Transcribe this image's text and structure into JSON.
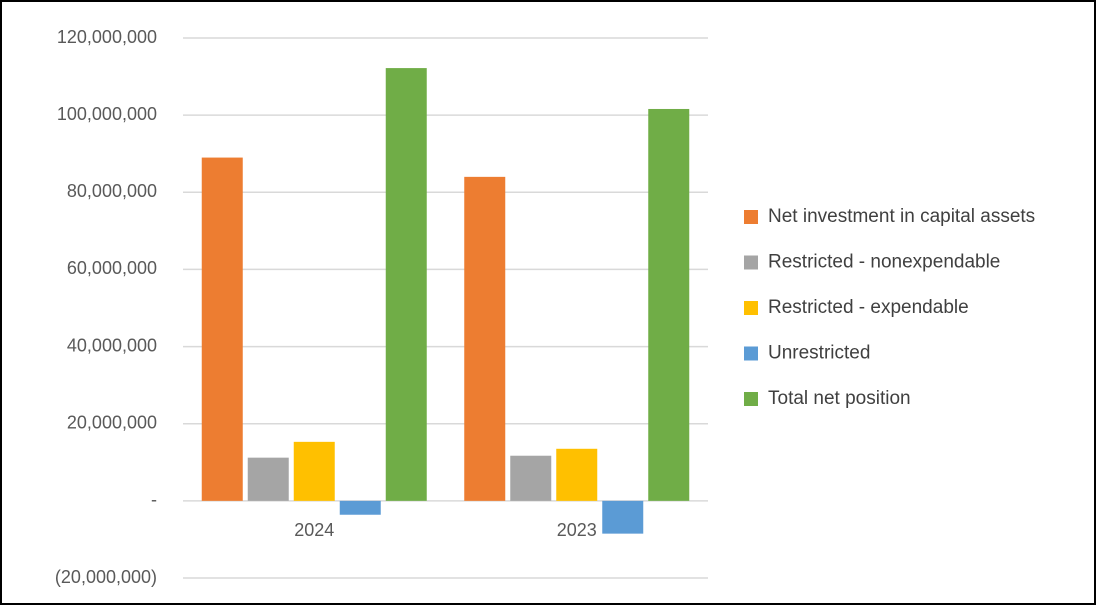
{
  "chart_data": {
    "type": "bar",
    "categories": [
      "2024",
      "2023"
    ],
    "series": [
      {
        "name": "Net investment in capital assets",
        "color": "#ed7d31",
        "values": [
          89000000,
          84000000
        ]
      },
      {
        "name": "Restricted - nonexpendable",
        "color": "#a5a5a5",
        "values": [
          11200000,
          11700000
        ]
      },
      {
        "name": "Restricted - expendable",
        "color": "#ffc000",
        "values": [
          15300000,
          13500000
        ]
      },
      {
        "name": "Unrestricted",
        "color": "#5b9bd5",
        "values": [
          -3600000,
          -8500000
        ]
      },
      {
        "name": "Total net position",
        "color": "#70ad47",
        "values": [
          112200000,
          101600000
        ]
      }
    ],
    "ylim": [
      -20000000,
      120000000
    ],
    "yticks": [
      {
        "value": -20000000,
        "label": "(20,000,000)"
      },
      {
        "value": 0,
        "label": "-"
      },
      {
        "value": 20000000,
        "label": "20,000,000"
      },
      {
        "value": 40000000,
        "label": "40,000,000"
      },
      {
        "value": 60000000,
        "label": "60,000,000"
      },
      {
        "value": 80000000,
        "label": "80,000,000"
      },
      {
        "value": 100000000,
        "label": "100,000,000"
      },
      {
        "value": 120000000,
        "label": "120,000,000"
      }
    ],
    "grid": true,
    "legend": "right"
  }
}
